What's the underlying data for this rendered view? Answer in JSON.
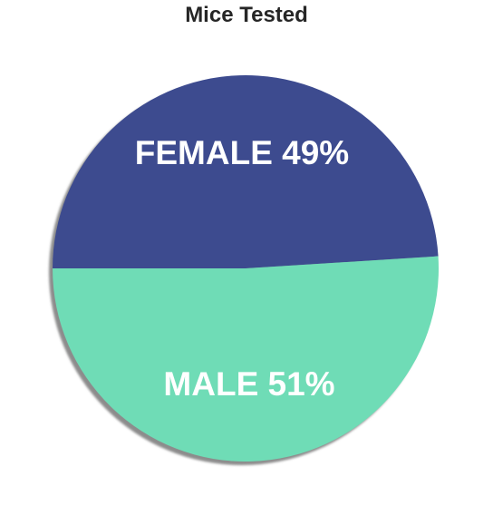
{
  "chart_data": {
    "type": "pie",
    "title": "Mice Tested",
    "categories": [
      "FEMALE",
      "MALE"
    ],
    "values": [
      49,
      51
    ],
    "labels": [
      "FEMALE 49%",
      "MALE 51%"
    ],
    "colors": [
      "#3d4b8f",
      "#6fdcb6"
    ],
    "shadow": true,
    "legend": "none"
  }
}
